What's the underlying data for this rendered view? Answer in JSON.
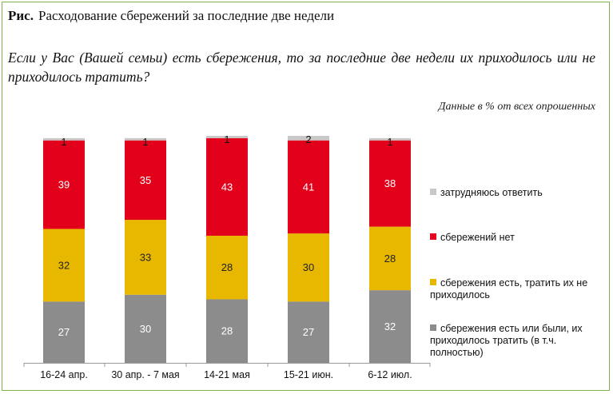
{
  "figure": {
    "label": "Рис.",
    "title": "Расходование сбережений за последние две недели",
    "question": "Если у Вас (Вашей семьи) есть сбережения, то за последние две недели их приходилось или не приходилось тратить?",
    "note": "Данные в % от всех опрошенных"
  },
  "chart_data": {
    "type": "bar",
    "stacked": true,
    "categories": [
      "16-24 апр.",
      "30 апр. - 7 мая",
      "14-21 мая",
      "15-21 июн.",
      "6-12 июл."
    ],
    "series": [
      {
        "name": "сбережения есть или были, их приходилось тратить (в т.ч. полностью)",
        "color": "#8c8c8c",
        "values": [
          27,
          30,
          28,
          27,
          32
        ]
      },
      {
        "name": "сбережения есть, тратить их не приходилось",
        "color": "#e8b800",
        "values": [
          32,
          33,
          28,
          30,
          28
        ]
      },
      {
        "name": "сбережений нет",
        "color": "#e2001a",
        "values": [
          39,
          35,
          43,
          41,
          38
        ]
      },
      {
        "name": "затрудняюсь ответить",
        "color": "#c8c8c8",
        "values": [
          1,
          1,
          1,
          2,
          1
        ]
      }
    ],
    "ylim": [
      0,
      100
    ],
    "legend_position": "right",
    "grid": false
  }
}
